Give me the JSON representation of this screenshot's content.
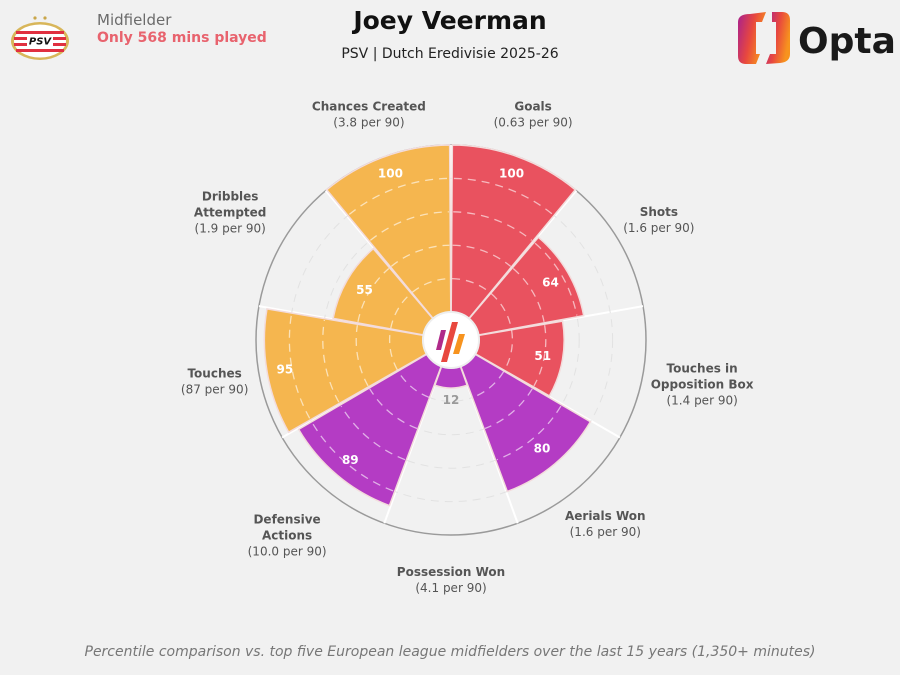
{
  "header": {
    "position": "Midfielder",
    "minutes_note": "Only 568 mins played",
    "player_name": "Joey Veerman",
    "subtitle": "PSV | Dutch Eredivisie 2025-26",
    "club_badge_text": "PSV",
    "brand": "Opta"
  },
  "colors": {
    "attacking": "#e9525f",
    "possession": "#f5b64f",
    "defending": "#b43cc4",
    "background": "#f1f1f1",
    "name_note": "#e8636e"
  },
  "chart_data": {
    "type": "polar-bar",
    "title": "Joey Veerman",
    "subtitle": "PSV | Dutch Eredivisie 2025-26",
    "rlim": [
      0,
      100
    ],
    "grid": true,
    "categories": [
      {
        "name": "Goals",
        "sub": "(0.63 per 90)",
        "value": 100,
        "group": "attacking"
      },
      {
        "name": "Shots",
        "sub": "(1.6 per 90)",
        "value": 64,
        "group": "attacking"
      },
      {
        "name": "Touches in Opposition Box",
        "name_lines": [
          "Touches in",
          "Opposition Box"
        ],
        "sub": "(1.4 per 90)",
        "value": 51,
        "group": "attacking"
      },
      {
        "name": "Aerials Won",
        "sub": "(1.6 per 90)",
        "value": 80,
        "group": "defending"
      },
      {
        "name": "Possession Won",
        "sub": "(4.1 per 90)",
        "value": 12,
        "group": "defending"
      },
      {
        "name": "Defensive Actions",
        "name_lines": [
          "Defensive",
          "Actions"
        ],
        "sub": "(10.0 per 90)",
        "value": 89,
        "group": "defending"
      },
      {
        "name": "Touches",
        "sub": "(87 per 90)",
        "value": 95,
        "group": "possession"
      },
      {
        "name": "Dribbles Attempted",
        "name_lines": [
          "Dribbles",
          "Attempted"
        ],
        "sub": "(1.9 per 90)",
        "value": 55,
        "group": "possession"
      },
      {
        "name": "Chances Created",
        "sub": "(3.8 per 90)",
        "value": 100,
        "group": "possession"
      }
    ]
  },
  "footnote": "Percentile comparison vs. top five European league midfielders over the last 15 years (1,350+ minutes)"
}
